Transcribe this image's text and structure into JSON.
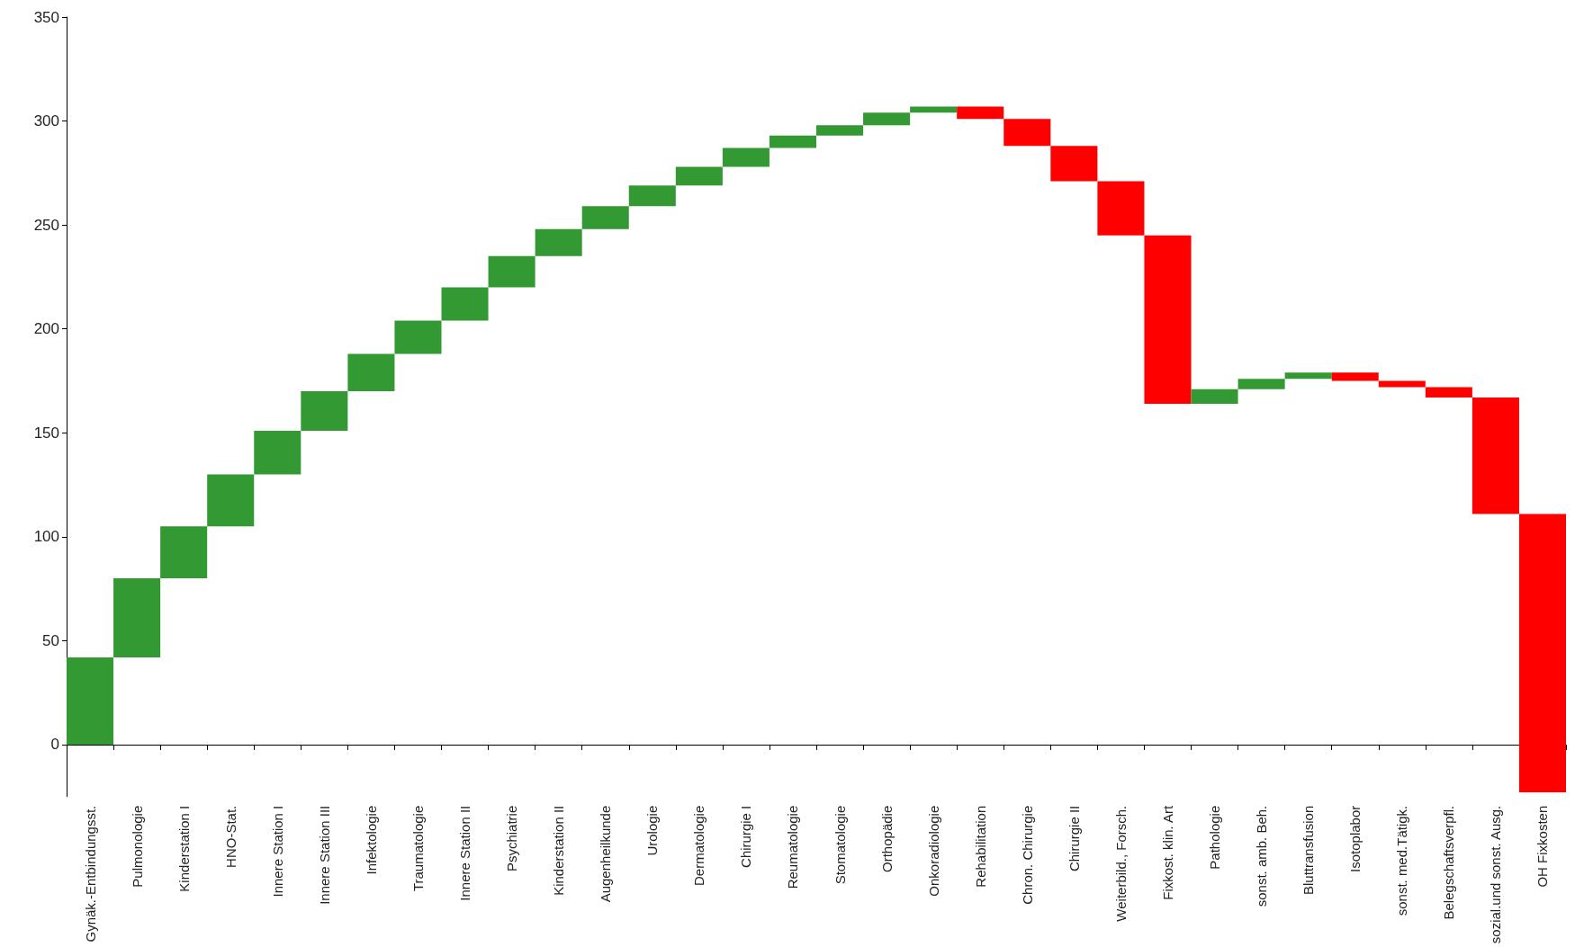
{
  "chart_data": {
    "type": "bar",
    "categories": [
      "Gynäk.-Entbindungsst.",
      "Pulmonologie",
      "Kinderstation I",
      "HNO-Stat.",
      "Innere Station I",
      "Innere Station III",
      "Infektologie",
      "Traumatologie",
      "Innere Station II",
      "Psychiatrie",
      "Kinderstation II",
      "Augenheilkunde",
      "Urologie",
      "Dermatologie",
      "Chirurgie I",
      "Reumatologie",
      "Stomatologie",
      "Orthopädie",
      "Onkoradiologie",
      "Rehabilitation",
      "Chron. Chirurgie",
      "Chirurgie II",
      "Weiterbild., Forsch.",
      "Fixkost. klin. Art",
      "Pathologie",
      "sonst. amb. Beh.",
      "Bluttransfusion",
      "Isotoplabor",
      "sonst. med.Tätigk.",
      "Belegschaftsverpfl.",
      "sozial.und sonst. Ausg.",
      "OH Fixkosten"
    ],
    "base": [
      0,
      42,
      80,
      105,
      130,
      151,
      170,
      188,
      204,
      220,
      235,
      248,
      259,
      269,
      278,
      287,
      293,
      298,
      304,
      307,
      301,
      288,
      271,
      245,
      164,
      171,
      176,
      179,
      175,
      172,
      167,
      111
    ],
    "values": [
      42,
      38,
      25,
      25,
      21,
      19,
      18,
      16,
      16,
      15,
      13,
      11,
      10,
      9,
      9,
      6,
      5,
      6,
      3,
      -6,
      -13,
      -17,
      -26,
      -81,
      7,
      5,
      3,
      -4,
      -3,
      -5,
      -56,
      -134
    ],
    "colors": [
      "#339933",
      "#339933",
      "#339933",
      "#339933",
      "#339933",
      "#339933",
      "#339933",
      "#339933",
      "#339933",
      "#339933",
      "#339933",
      "#339933",
      "#339933",
      "#339933",
      "#339933",
      "#339933",
      "#339933",
      "#339933",
      "#339933",
      "#ff0000",
      "#ff0000",
      "#ff0000",
      "#ff0000",
      "#ff0000",
      "#339933",
      "#339933",
      "#339933",
      "#ff0000",
      "#ff0000",
      "#ff0000",
      "#ff0000",
      "#ff0000"
    ],
    "ylim": [
      -25,
      350
    ],
    "yticks": [
      0,
      50,
      100,
      150,
      200,
      250,
      300,
      350
    ]
  }
}
